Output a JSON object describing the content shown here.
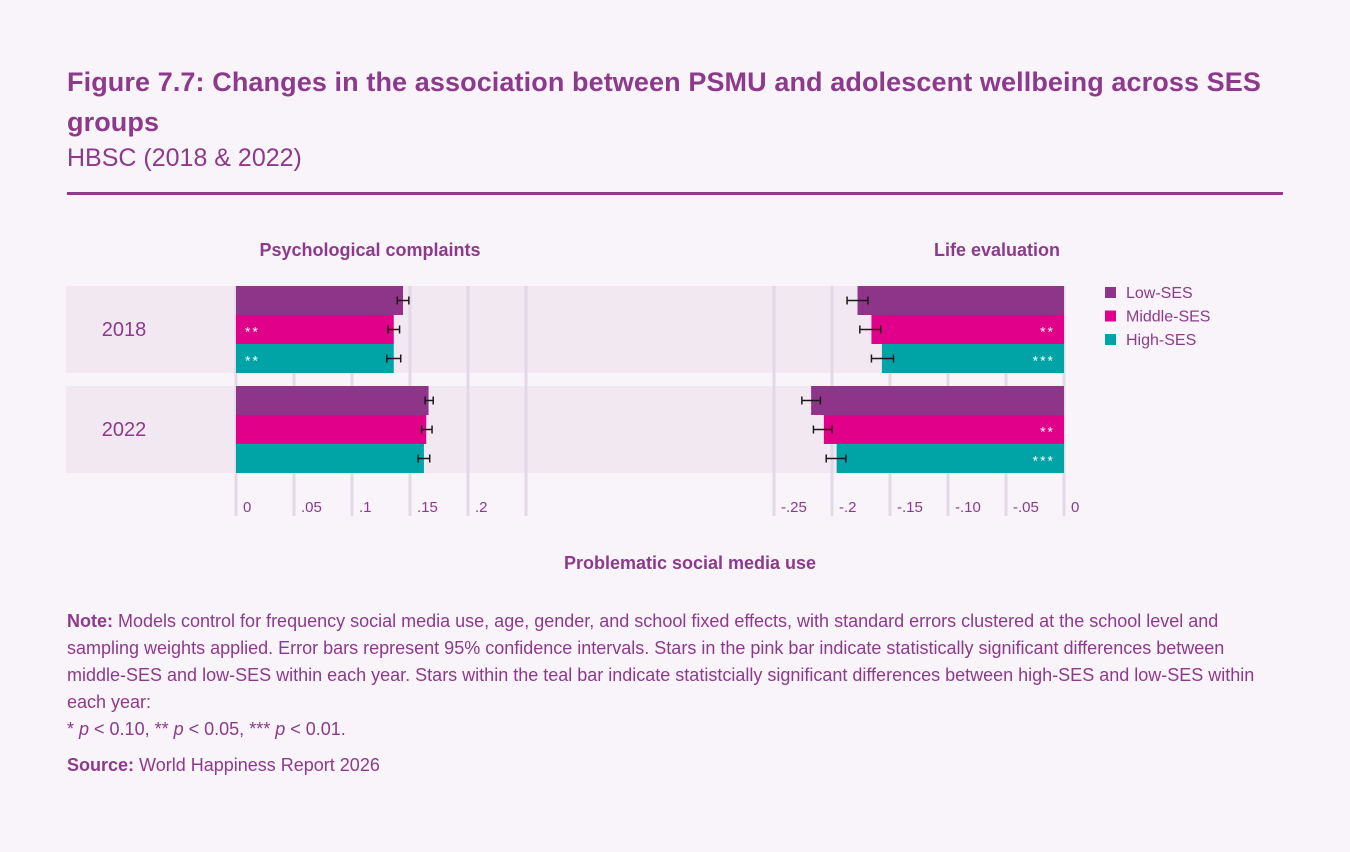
{
  "header": {
    "title": "Figure 7.7: Changes in the association between PSMU and adolescent wellbeing across SES groups",
    "subtitle": "HBSC (2018 & 2022)"
  },
  "chart_data": {
    "type": "bar",
    "orientation": "horizontal",
    "xlabel": "Problematic social media use",
    "categories": [
      "2018",
      "2022"
    ],
    "legend": {
      "placement": "right",
      "entries": [
        {
          "name": "Low-SES",
          "color": "#8e3589"
        },
        {
          "name": "Middle-SES",
          "color": "#e0008a"
        },
        {
          "name": "High-SES",
          "color": "#00a3a6"
        }
      ]
    },
    "panels": [
      {
        "title": "Psychological complaints",
        "xlim": [
          0,
          0.25
        ],
        "ticks": [
          0,
          0.05,
          0.1,
          0.15,
          0.2,
          0.25
        ],
        "tick_labels": [
          "0",
          ".05",
          ".1",
          ".15",
          ".2",
          ""
        ],
        "grid": true,
        "star_side": "start",
        "series": [
          {
            "name": "Low-SES",
            "values": [
              0.144,
              0.166
            ],
            "ci_low": [
              0.139,
              0.163
            ],
            "ci_high": [
              0.149,
              0.17
            ],
            "stars": [
              "",
              ""
            ]
          },
          {
            "name": "Middle-SES",
            "values": [
              0.136,
              0.164
            ],
            "ci_low": [
              0.131,
              0.16
            ],
            "ci_high": [
              0.141,
              0.169
            ],
            "stars": [
              "**",
              ""
            ]
          },
          {
            "name": "High-SES",
            "values": [
              0.136,
              0.162
            ],
            "ci_low": [
              0.13,
              0.157
            ],
            "ci_high": [
              0.142,
              0.167
            ],
            "stars": [
              "**",
              ""
            ]
          }
        ]
      },
      {
        "title": "Life evaluation",
        "xlim": [
          -0.25,
          0
        ],
        "ticks": [
          -0.25,
          -0.2,
          -0.15,
          -0.1,
          -0.05,
          0
        ],
        "tick_labels": [
          "-.25",
          "-.2",
          "-.15",
          "-.10",
          "-.05",
          "0"
        ],
        "grid": true,
        "star_side": "end",
        "series": [
          {
            "name": "Low-SES",
            "values": [
              -0.178,
              -0.218
            ],
            "ci_low": [
              -0.187,
              -0.226
            ],
            "ci_high": [
              -0.169,
              -0.21
            ],
            "stars": [
              "",
              ""
            ]
          },
          {
            "name": "Middle-SES",
            "values": [
              -0.166,
              -0.207
            ],
            "ci_low": [
              -0.176,
              -0.216
            ],
            "ci_high": [
              -0.158,
              -0.2
            ],
            "stars": [
              "**",
              "**"
            ]
          },
          {
            "name": "High-SES",
            "values": [
              -0.157,
              -0.196
            ],
            "ci_low": [
              -0.166,
              -0.205
            ],
            "ci_high": [
              -0.147,
              -0.188
            ],
            "stars": [
              "***",
              "***"
            ]
          }
        ]
      }
    ]
  },
  "footer": {
    "note_label": "Note:",
    "note_text": " Models control for frequency social media use, age, gender, and school fixed effects, with standard errors clustered at the school level and sampling weights applied. Error bars represent 95% confidence intervals. Stars in the pink bar indicate statistically significant differences between middle-SES and low-SES within each year. Stars within the teal bar indicate statistcially significant differences between high-SES and low-SES within each year:",
    "sig_levels": [
      {
        "stars": "*",
        "p": "p",
        "text": " < 0.10, "
      },
      {
        "stars": "**",
        "p": "p",
        "text": " < 0.05, "
      },
      {
        "stars": "***",
        "p": "p",
        "text": " < 0.01."
      }
    ],
    "source_label": "Source:",
    "source_text": " World Happiness Report 2026"
  }
}
